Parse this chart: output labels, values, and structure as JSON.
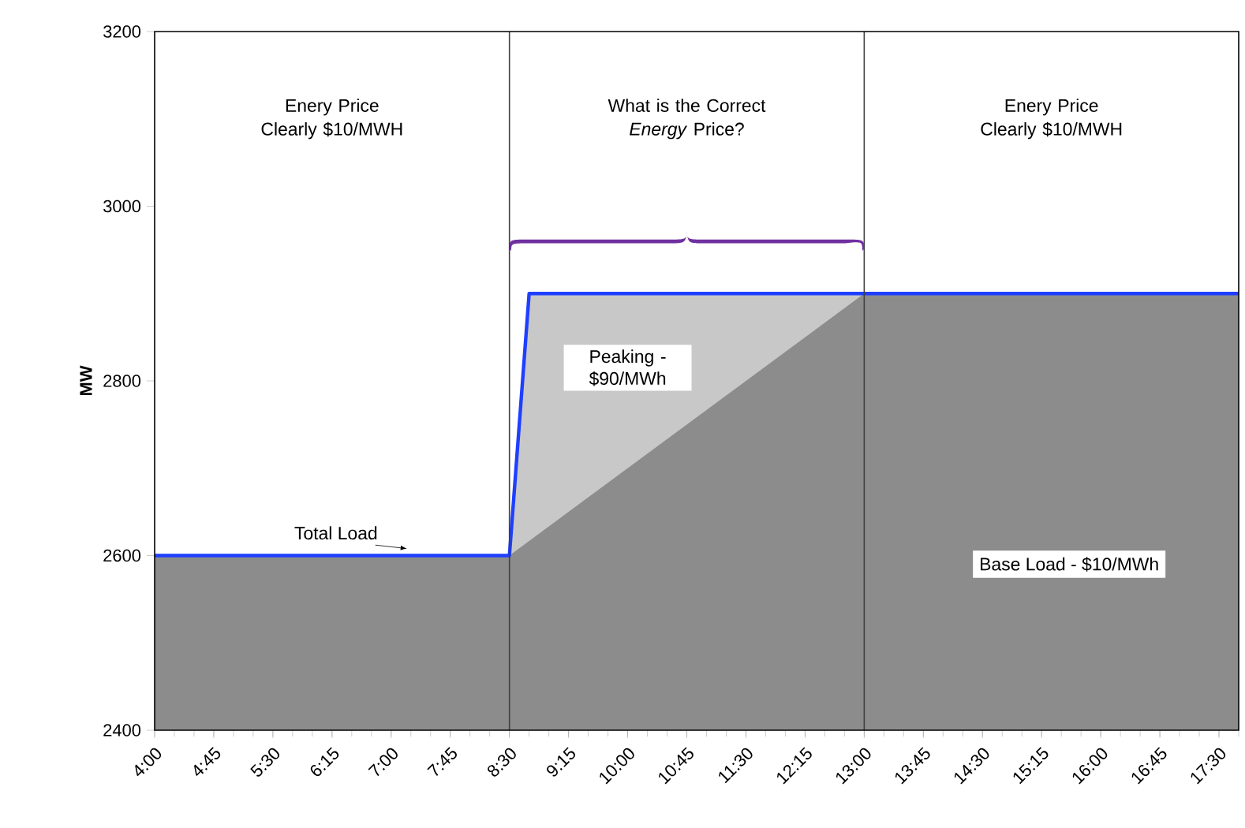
{
  "chart_data": {
    "type": "area",
    "ylabel": "MW",
    "xlim": [
      4,
      17.75
    ],
    "ylim": [
      2400,
      3200
    ],
    "yticks": [
      2400,
      2600,
      2800,
      3000,
      3200
    ],
    "xticks": [
      {
        "value": 4,
        "label": "4:00"
      },
      {
        "value": 4.75,
        "label": "4:45"
      },
      {
        "value": 5.5,
        "label": "5:30"
      },
      {
        "value": 6.25,
        "label": "6:15"
      },
      {
        "value": 7,
        "label": "7:00"
      },
      {
        "value": 7.75,
        "label": "7:45"
      },
      {
        "value": 8.5,
        "label": "8:30"
      },
      {
        "value": 9.25,
        "label": "9:15"
      },
      {
        "value": 10,
        "label": "10:00"
      },
      {
        "value": 10.75,
        "label": "10:45"
      },
      {
        "value": 11.5,
        "label": "11:30"
      },
      {
        "value": 12.25,
        "label": "12:15"
      },
      {
        "value": 13,
        "label": "13:00"
      },
      {
        "value": 13.75,
        "label": "13:45"
      },
      {
        "value": 14.5,
        "label": "14:30"
      },
      {
        "value": 15.25,
        "label": "15:15"
      },
      {
        "value": 16,
        "label": "16:00"
      },
      {
        "value": 16.75,
        "label": "16:45"
      },
      {
        "value": 17.5,
        "label": "17:30"
      }
    ],
    "series": [
      {
        "name": "Peaking - $90/MWh",
        "color": "#c8c8c8",
        "x": [
          8.5,
          8.75,
          13
        ],
        "values": [
          2600,
          2900,
          2900
        ]
      },
      {
        "name": "Base Load - $10/MWh",
        "color": "#8c8c8c",
        "x": [
          4,
          8.5,
          13,
          17.75
        ],
        "values": [
          2600,
          2600,
          2900,
          2900
        ]
      },
      {
        "name": "Total Load",
        "type": "line",
        "color": "#1f3fff",
        "x": [
          4,
          8.5,
          8.75,
          17.75
        ],
        "values": [
          2600,
          2600,
          2900,
          2900
        ]
      }
    ],
    "ref_lines": [
      {
        "axis": "x",
        "value": 8.5
      },
      {
        "axis": "x",
        "value": 13
      }
    ],
    "annotations": [
      "Enery Price Clearly $10/MWH",
      "What is the Correct *Energy* Price?",
      "Enery Price Clearly $10/MWH"
    ]
  }
}
